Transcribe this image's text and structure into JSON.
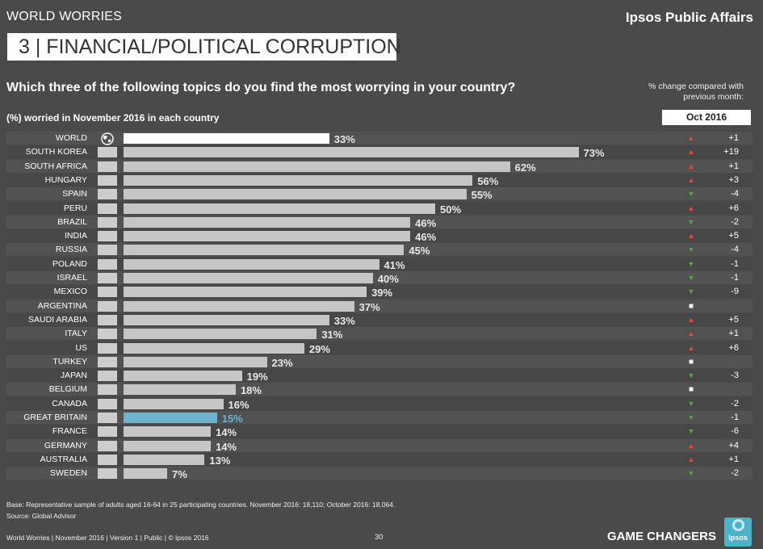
{
  "header": {
    "section_label": "WORLD WORRIES",
    "brand": "Ipsos Public Affairs",
    "title": "3 | FINANCIAL/POLITICAL CORRUPTION",
    "question": "Which three of the following topics do you find the most worrying in your country?",
    "sub_label": "(%) worried in November 2016 in each country",
    "change_caption": "% change compared with previous month:",
    "month_label": "Oct 2016"
  },
  "chart_data": {
    "type": "bar",
    "orientation": "horizontal",
    "value_suffix": "%",
    "xlim": [
      0,
      100
    ],
    "categories": [
      "WORLD",
      "SOUTH KOREA",
      "SOUTH AFRICA",
      "HUNGARY",
      "SPAIN",
      "PERU",
      "BRAZIL",
      "INDIA",
      "RUSSIA",
      "POLAND",
      "ISRAEL",
      "MEXICO",
      "ARGENTINA",
      "SAUDI ARABIA",
      "ITALY",
      "US",
      "TURKEY",
      "JAPAN",
      "BELGIUM",
      "CANADA",
      "GREAT BRITAIN",
      "FRANCE",
      "GERMANY",
      "AUSTRALIA",
      "SWEDEN"
    ],
    "values": [
      33,
      73,
      62,
      56,
      55,
      50,
      46,
      46,
      45,
      41,
      40,
      39,
      37,
      33,
      31,
      29,
      23,
      19,
      18,
      16,
      15,
      14,
      14,
      13,
      7
    ],
    "value_labels": [
      "33%",
      "73%",
      "62%",
      "56%",
      "55%",
      "50%",
      "46%",
      "46%",
      "45%",
      "41%",
      "40%",
      "39%",
      "37%",
      "33%",
      "31%",
      "29%",
      "23%",
      "19%",
      "18%",
      "16%",
      "15%",
      "14%",
      "14%",
      "13%",
      "7%"
    ],
    "change_values": [
      "+1",
      "+19",
      "+1",
      "+3",
      "-4",
      "+6",
      "-2",
      "+5",
      "-4",
      "-1",
      "-1",
      "-9",
      "",
      "+5",
      "+1",
      "+6",
      "",
      "-3",
      "",
      "-2",
      "-1",
      "-6",
      "+4",
      "+1",
      "-2"
    ],
    "change_direction": [
      "up",
      "up",
      "up",
      "up",
      "down",
      "up",
      "down",
      "up",
      "down",
      "down",
      "down",
      "down",
      "same",
      "up",
      "up",
      "up",
      "same",
      "down",
      "same",
      "down",
      "down",
      "down",
      "up",
      "up",
      "down"
    ],
    "highlight_index": 20,
    "colors": {
      "world_bar": "#ffffff",
      "bar": "#c6c6c6",
      "highlight_bar": "#6bb3cf",
      "up": "#e64a3a",
      "down": "#5ba543"
    }
  },
  "icons": {
    "world": "globe-icon",
    "countries": "flag-icon",
    "up": "triangle-up-icon",
    "down": "triangle-down-icon",
    "same": "square-icon"
  },
  "notes": {
    "base": "Base: Representative sample of adults aged 16-64 in 25 participating countries. November 2016: 18,110; October 2016: 18,064.",
    "source": "Source: Global Advisor"
  },
  "footer": {
    "left": "World Worries | November 2016 | Version 1 | Public | © Ipsos 2016",
    "page_number": "30",
    "tagline": "GAME CHANGERS",
    "logo_text": "Ipsos"
  }
}
